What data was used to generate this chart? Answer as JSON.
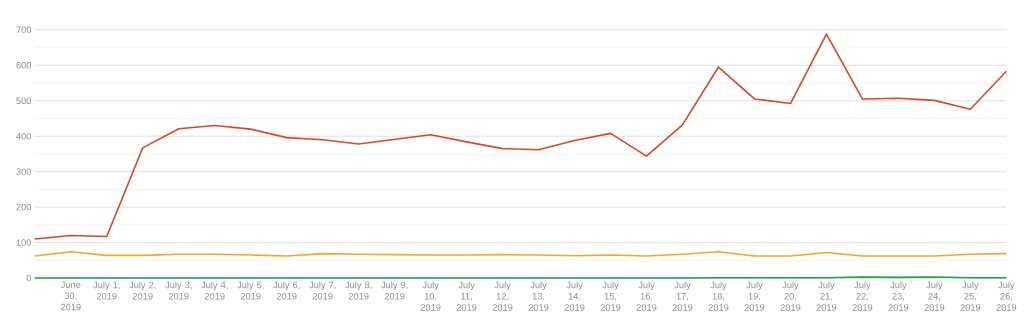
{
  "chart_data": {
    "type": "line",
    "categories": [
      null,
      "June 30, 2019",
      "July 1, 2019",
      "July 2, 2019",
      "July 3, 2019",
      "July 4, 2019",
      "July 5, 2019",
      "July 6, 2019",
      "July 7, 2019",
      "July 8, 2019",
      "July 9, 2019",
      "July 10, 2019",
      "July 11, 2019",
      "July 12, 2019",
      "July 13, 2019",
      "July 14, 2019",
      "July 15, 2019",
      "July 16, 2019",
      "July 17, 2019",
      "July 18, 2019",
      "July 19, 2019",
      "July 20, 2019",
      "July 21, 2019",
      "July 22, 2019",
      "July 23, 2019",
      "July 24, 2019",
      "July 25, 2019",
      "July 26, 2019"
    ],
    "series": [
      {
        "color": "#d9472b",
        "values": [
          110,
          120,
          117,
          367,
          421,
          430,
          420,
          396,
          390,
          378,
          391,
          404,
          384,
          365,
          362,
          388,
          408,
          344,
          432,
          595,
          505,
          492,
          688,
          505,
          507,
          501,
          476,
          583
        ]
      },
      {
        "color": "#f5a623",
        "values": [
          62,
          74,
          64,
          64,
          67,
          67,
          65,
          62,
          69,
          67,
          66,
          65,
          65,
          66,
          65,
          63,
          65,
          62,
          67,
          74,
          62,
          62,
          72,
          62,
          62,
          62,
          67,
          69
        ]
      },
      {
        "color": "#1e9e48",
        "values": [
          0,
          0,
          0,
          0,
          0,
          0,
          0,
          0,
          0,
          0,
          0,
          0,
          0,
          0,
          0,
          0,
          0,
          0,
          0,
          1,
          1,
          1,
          1,
          3,
          2,
          3,
          1,
          1
        ]
      }
    ],
    "ylim": [
      0,
      700
    ],
    "yticks": [
      0,
      {
        "value": 50,
        "label": null
      },
      100,
      {
        "value": 150,
        "label": null
      },
      200,
      {
        "value": 250,
        "label": null
      },
      300,
      {
        "value": 350,
        "label": null
      },
      400,
      {
        "value": 450,
        "label": null
      },
      500,
      {
        "value": 550,
        "label": null
      },
      600,
      {
        "value": 650,
        "label": null
      },
      700
    ],
    "grid": "y",
    "legend": false,
    "marker": "none",
    "line_style": "solid"
  }
}
